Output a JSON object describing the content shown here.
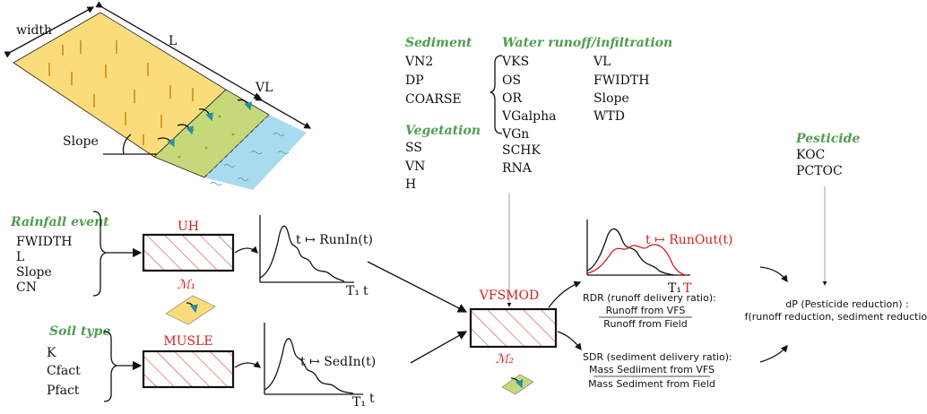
{
  "illustration": {
    "width": "width",
    "length": "L",
    "vfs_length": "VL",
    "slope": "Slope"
  },
  "sediment": {
    "title": "Sediment",
    "params": [
      "VN2",
      "DP",
      "COARSE"
    ]
  },
  "vegetation": {
    "title": "Vegetation",
    "params": [
      "SS",
      "VN",
      "H"
    ]
  },
  "water": {
    "title": "Water runoff/infiltration",
    "params_left": [
      "VKS",
      "OS",
      "OR",
      "VGalpha",
      "VGn",
      "SCHK",
      "RNA"
    ],
    "params_right": [
      "VL",
      "FWIDTH",
      "Slope",
      "WTD"
    ]
  },
  "pesticide": {
    "title": "Pesticide",
    "params": [
      "KOC",
      "PCTOC"
    ]
  },
  "rainfall": {
    "title": "Rainfall event",
    "params": [
      "FWIDTH",
      "L",
      "Slope",
      "CN"
    ],
    "model": "UH",
    "model_symbol": "ℳ₁",
    "output": "t ↦ RunIn(t)",
    "axis_t1": "T₁",
    "axis_t": "t"
  },
  "soil": {
    "title": "Soil type",
    "params": [
      "K",
      "Cfact",
      "Pfact"
    ],
    "model": "MUSLE",
    "output": "t ↦ SedIn(t)",
    "axis_t1": "T₁",
    "axis_t": "t"
  },
  "vfsmod": {
    "title": "VFSMOD",
    "symbol": "ℳ₂",
    "output": "t ↦ RunOut(t)",
    "axis_t1": "T₁",
    "axis_t": "T"
  },
  "rdr": {
    "label": "RDR (runoff delivery ratio):",
    "numerator": "Runoff from VFS",
    "denominator": "Runoff from Field"
  },
  "sdr": {
    "label": "SDR (sediment delivery ratio):",
    "numerator": "Mass Sediiment from VFS",
    "denominator": "Mass Sediment from Field"
  },
  "pesticide_reduction": {
    "line1": "dP (Pesticide reduction) :",
    "line2": "f(runoff reduction, sediment reduction)"
  }
}
